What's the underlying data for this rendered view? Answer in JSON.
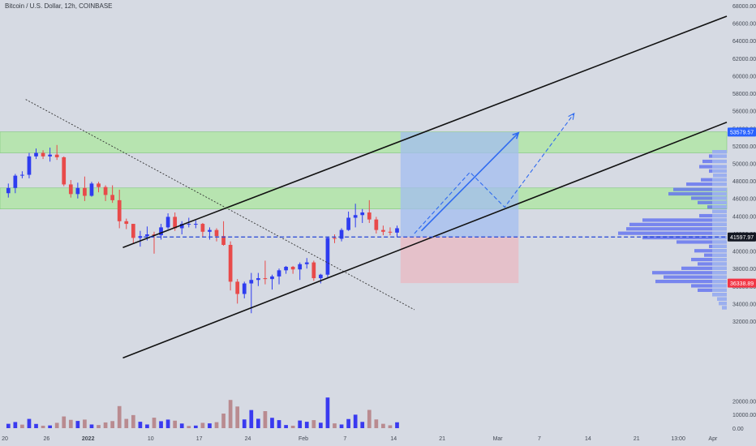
{
  "chart_data": {
    "type": "candlestick",
    "title": "Bitcoin / U.S. Dollar, 12h, COINBASE",
    "y_axis": {
      "range": [
        31000,
        69000
      ],
      "ticks": [
        "68000.00",
        "66000.00",
        "64000.00",
        "62000.00",
        "60000.00",
        "58000.00",
        "56000.00",
        "54000.00",
        "52000.00",
        "50000.00",
        "48000.00",
        "46000.00",
        "44000.00",
        "42000.00",
        "40000.00",
        "38000.00",
        "36000.00",
        "34000.00",
        "32000.00"
      ],
      "tick_values": [
        68000,
        66000,
        64000,
        62000,
        60000,
        58000,
        56000,
        54000,
        52000,
        50000,
        48000,
        46000,
        44000,
        42000,
        40000,
        38000,
        36000,
        34000,
        32000
      ]
    },
    "volume_axis": {
      "ticks": [
        "20000.00",
        "10000.00",
        "0.00"
      ],
      "tick_values": [
        20000,
        10000,
        0
      ],
      "max": 25000
    },
    "x_axis": {
      "start_date": "2021-12-20",
      "end_date": "2022-04-03",
      "labels": [
        {
          "text": "20",
          "date": "2021-12-20"
        },
        {
          "text": "26",
          "date": "2021-12-26"
        },
        {
          "text": "2022",
          "date": "2022-01-01"
        },
        {
          "text": "10",
          "date": "2022-01-10"
        },
        {
          "text": "17",
          "date": "2022-01-17"
        },
        {
          "text": "24",
          "date": "2022-01-24"
        },
        {
          "text": "Feb",
          "date": "2022-02-01"
        },
        {
          "text": "7",
          "date": "2022-02-07"
        },
        {
          "text": "14",
          "date": "2022-02-14"
        },
        {
          "text": "21",
          "date": "2022-02-21"
        },
        {
          "text": "Mar",
          "date": "2022-03-01"
        },
        {
          "text": "7",
          "date": "2022-03-07"
        },
        {
          "text": "14",
          "date": "2022-03-14"
        },
        {
          "text": "21",
          "date": "2022-03-21"
        },
        {
          "text": "13:00",
          "date": "2022-03-27"
        },
        {
          "text": "Apr",
          "date": "2022-04-01"
        }
      ]
    },
    "price_labels": [
      {
        "text": "53579.57",
        "value": 53579.57,
        "color": "#2962ff"
      },
      {
        "text": "41597.97",
        "value": 41597.97,
        "color": "#131722"
      },
      {
        "text": "36338.89",
        "value": 36338.89,
        "color": "#f23645"
      }
    ],
    "zones": [
      {
        "name": "upper-resistance-zone",
        "from": 51200,
        "to": 53600,
        "color": "#b7e4b0"
      },
      {
        "name": "middle-resistance-zone",
        "from": 44800,
        "to": 47200,
        "color": "#b7e4b0"
      }
    ],
    "position": {
      "start": "2022-02-15",
      "end": "2022-03-04",
      "entry": 41597.97,
      "target": 53579.57,
      "stop": 36338.89
    },
    "lines": [
      {
        "name": "channel-top-line",
        "from": [
          "2022-01-06",
          40400
        ],
        "to": [
          "2022-04-03",
          66800
        ]
      },
      {
        "name": "channel-bottom-line",
        "from": [
          "2022-01-06",
          27800
        ],
        "to": [
          "2022-04-03",
          54700
        ]
      },
      {
        "name": "downtrend-dotted-line",
        "from": [
          "2021-12-23",
          57300
        ],
        "to": [
          "2022-02-17",
          33300
        ]
      },
      {
        "name": "support-dashed-line",
        "from": [
          "2022-01-09",
          41600
        ],
        "to": [
          "2022-04-03",
          41600
        ]
      }
    ],
    "arrows": [
      {
        "name": "projection-arrow",
        "path": [
          [
            "2022-02-18",
            42300
          ],
          [
            "2022-03-04",
            53500
          ]
        ],
        "dashed": false
      },
      {
        "name": "alternate-path-arrow",
        "path": [
          [
            "2022-02-17",
            42000
          ],
          [
            "2022-02-25",
            49000
          ],
          [
            "2022-03-02",
            45000
          ],
          [
            "2022-03-12",
            55700
          ]
        ],
        "dashed": true
      }
    ],
    "ohlc": [
      {
        "date": "2021-12-20",
        "o": 46600,
        "h": 47700,
        "l": 46100,
        "c": 47200
      },
      {
        "date": "2021-12-21",
        "o": 47200,
        "h": 48800,
        "l": 46600,
        "c": 48600
      },
      {
        "date": "2021-12-22",
        "o": 48600,
        "h": 49100,
        "l": 48300,
        "c": 48700
      },
      {
        "date": "2021-12-23",
        "o": 48700,
        "h": 51200,
        "l": 48300,
        "c": 50800
      },
      {
        "date": "2021-12-24",
        "o": 50800,
        "h": 51700,
        "l": 50500,
        "c": 51200
      },
      {
        "date": "2021-12-25",
        "o": 51200,
        "h": 51500,
        "l": 50500,
        "c": 50800
      },
      {
        "date": "2021-12-26",
        "o": 50800,
        "h": 51800,
        "l": 50200,
        "c": 51000
      },
      {
        "date": "2021-12-27",
        "o": 51000,
        "h": 52100,
        "l": 50400,
        "c": 50700
      },
      {
        "date": "2021-12-28",
        "o": 50700,
        "h": 50800,
        "l": 47400,
        "c": 47600
      },
      {
        "date": "2021-12-29",
        "o": 47600,
        "h": 48100,
        "l": 46100,
        "c": 46500
      },
      {
        "date": "2021-12-30",
        "o": 46500,
        "h": 47800,
        "l": 46000,
        "c": 47200
      },
      {
        "date": "2021-12-31",
        "o": 47200,
        "h": 48500,
        "l": 45700,
        "c": 46300
      },
      {
        "date": "2022-01-01",
        "o": 46300,
        "h": 47900,
        "l": 46200,
        "c": 47700
      },
      {
        "date": "2022-01-02",
        "o": 47700,
        "h": 47900,
        "l": 46700,
        "c": 47300
      },
      {
        "date": "2022-01-03",
        "o": 47300,
        "h": 47500,
        "l": 45700,
        "c": 46400
      },
      {
        "date": "2022-01-04",
        "o": 46400,
        "h": 47500,
        "l": 45500,
        "c": 45800
      },
      {
        "date": "2022-01-05",
        "o": 45800,
        "h": 47000,
        "l": 42600,
        "c": 43400
      },
      {
        "date": "2022-01-06",
        "o": 43400,
        "h": 43700,
        "l": 42500,
        "c": 43100
      },
      {
        "date": "2022-01-07",
        "o": 43100,
        "h": 43100,
        "l": 40800,
        "c": 41500
      },
      {
        "date": "2022-01-08",
        "o": 41500,
        "h": 42300,
        "l": 40500,
        "c": 41700
      },
      {
        "date": "2022-01-09",
        "o": 41700,
        "h": 42800,
        "l": 41200,
        "c": 41900
      },
      {
        "date": "2022-01-10",
        "o": 41900,
        "h": 42200,
        "l": 39700,
        "c": 41800
      },
      {
        "date": "2022-01-11",
        "o": 41800,
        "h": 43100,
        "l": 41300,
        "c": 42700
      },
      {
        "date": "2022-01-12",
        "o": 42700,
        "h": 44300,
        "l": 42500,
        "c": 43900
      },
      {
        "date": "2022-01-13",
        "o": 43900,
        "h": 44400,
        "l": 42300,
        "c": 42600
      },
      {
        "date": "2022-01-14",
        "o": 42600,
        "h": 43400,
        "l": 41900,
        "c": 43100
      },
      {
        "date": "2022-01-15",
        "o": 43100,
        "h": 43800,
        "l": 42700,
        "c": 43100
      },
      {
        "date": "2022-01-16",
        "o": 43100,
        "h": 43500,
        "l": 42600,
        "c": 43100
      },
      {
        "date": "2022-01-17",
        "o": 43100,
        "h": 43200,
        "l": 41600,
        "c": 42200
      },
      {
        "date": "2022-01-18",
        "o": 42200,
        "h": 42700,
        "l": 41300,
        "c": 42400
      },
      {
        "date": "2022-01-19",
        "o": 42400,
        "h": 42600,
        "l": 41100,
        "c": 41700
      },
      {
        "date": "2022-01-20",
        "o": 41700,
        "h": 43400,
        "l": 40600,
        "c": 40700
      },
      {
        "date": "2022-01-21",
        "o": 40700,
        "h": 41100,
        "l": 35500,
        "c": 36500
      },
      {
        "date": "2022-01-22",
        "o": 36500,
        "h": 36800,
        "l": 34000,
        "c": 35100
      },
      {
        "date": "2022-01-23",
        "o": 35100,
        "h": 36500,
        "l": 34600,
        "c": 36300
      },
      {
        "date": "2022-01-24",
        "o": 36300,
        "h": 37500,
        "l": 32900,
        "c": 36700
      },
      {
        "date": "2022-01-25",
        "o": 36700,
        "h": 37500,
        "l": 36000,
        "c": 36900
      },
      {
        "date": "2022-01-26",
        "o": 36900,
        "h": 38900,
        "l": 36200,
        "c": 36800
      },
      {
        "date": "2022-01-27",
        "o": 36800,
        "h": 37300,
        "l": 35600,
        "c": 37100
      },
      {
        "date": "2022-01-28",
        "o": 37100,
        "h": 38000,
        "l": 36200,
        "c": 37800
      },
      {
        "date": "2022-01-29",
        "o": 37800,
        "h": 38300,
        "l": 37400,
        "c": 38200
      },
      {
        "date": "2022-01-30",
        "o": 38200,
        "h": 38300,
        "l": 37400,
        "c": 37900
      },
      {
        "date": "2022-01-31",
        "o": 37900,
        "h": 38700,
        "l": 36700,
        "c": 38500
      },
      {
        "date": "2022-02-01",
        "o": 38500,
        "h": 39200,
        "l": 38000,
        "c": 38700
      },
      {
        "date": "2022-02-02",
        "o": 38700,
        "h": 38900,
        "l": 36600,
        "c": 36900
      },
      {
        "date": "2022-02-03",
        "o": 36900,
        "h": 37400,
        "l": 36300,
        "c": 37300
      },
      {
        "date": "2022-02-04",
        "o": 37300,
        "h": 41600,
        "l": 37000,
        "c": 41500
      },
      {
        "date": "2022-02-05",
        "o": 41500,
        "h": 41900,
        "l": 40900,
        "c": 41400
      },
      {
        "date": "2022-02-06",
        "o": 41400,
        "h": 42600,
        "l": 41100,
        "c": 42400
      },
      {
        "date": "2022-02-07",
        "o": 42400,
        "h": 44500,
        "l": 42300,
        "c": 43800
      },
      {
        "date": "2022-02-08",
        "o": 43800,
        "h": 45400,
        "l": 42700,
        "c": 44100
      },
      {
        "date": "2022-02-09",
        "o": 44100,
        "h": 44800,
        "l": 43200,
        "c": 44400
      },
      {
        "date": "2022-02-10",
        "o": 44400,
        "h": 45800,
        "l": 43200,
        "c": 43600
      },
      {
        "date": "2022-02-11",
        "o": 43600,
        "h": 43900,
        "l": 42000,
        "c": 42400
      },
      {
        "date": "2022-02-12",
        "o": 42400,
        "h": 42900,
        "l": 41800,
        "c": 42200
      },
      {
        "date": "2022-02-13",
        "o": 42200,
        "h": 42700,
        "l": 41800,
        "c": 42100
      },
      {
        "date": "2022-02-14",
        "o": 42100,
        "h": 42900,
        "l": 41600,
        "c": 42600
      }
    ],
    "volume": [
      {
        "date": "2021-12-20",
        "v": 3200,
        "up": true
      },
      {
        "date": "2021-12-21",
        "v": 4500,
        "up": true
      },
      {
        "date": "2021-12-22",
        "v": 2600,
        "up": false
      },
      {
        "date": "2021-12-23",
        "v": 6800,
        "up": true
      },
      {
        "date": "2021-12-24",
        "v": 3100,
        "up": true
      },
      {
        "date": "2021-12-25",
        "v": 1800,
        "up": false
      },
      {
        "date": "2021-12-26",
        "v": 2000,
        "up": true
      },
      {
        "date": "2021-12-27",
        "v": 3900,
        "up": false
      },
      {
        "date": "2021-12-28",
        "v": 8600,
        "up": false
      },
      {
        "date": "2021-12-29",
        "v": 6100,
        "up": false
      },
      {
        "date": "2021-12-30",
        "v": 5300,
        "up": true
      },
      {
        "date": "2021-12-31",
        "v": 6300,
        "up": false
      },
      {
        "date": "2022-01-01",
        "v": 2700,
        "up": true
      },
      {
        "date": "2022-01-02",
        "v": 2300,
        "up": false
      },
      {
        "date": "2022-01-03",
        "v": 4200,
        "up": false
      },
      {
        "date": "2022-01-04",
        "v": 5200,
        "up": false
      },
      {
        "date": "2022-01-05",
        "v": 16200,
        "up": false
      },
      {
        "date": "2022-01-06",
        "v": 6800,
        "up": false
      },
      {
        "date": "2022-01-07",
        "v": 9600,
        "up": false
      },
      {
        "date": "2022-01-08",
        "v": 4700,
        "up": true
      },
      {
        "date": "2022-01-09",
        "v": 2700,
        "up": true
      },
      {
        "date": "2022-01-10",
        "v": 7700,
        "up": false
      },
      {
        "date": "2022-01-11",
        "v": 5100,
        "up": true
      },
      {
        "date": "2022-01-12",
        "v": 6300,
        "up": true
      },
      {
        "date": "2022-01-13",
        "v": 5500,
        "up": false
      },
      {
        "date": "2022-01-14",
        "v": 3400,
        "up": true
      },
      {
        "date": "2022-01-15",
        "v": 1600,
        "up": false
      },
      {
        "date": "2022-01-16",
        "v": 1900,
        "up": true
      },
      {
        "date": "2022-01-17",
        "v": 3900,
        "up": false
      },
      {
        "date": "2022-01-18",
        "v": 3500,
        "up": true
      },
      {
        "date": "2022-01-19",
        "v": 4400,
        "up": false
      },
      {
        "date": "2022-01-20",
        "v": 10700,
        "up": false
      },
      {
        "date": "2022-01-21",
        "v": 20700,
        "up": false
      },
      {
        "date": "2022-01-22",
        "v": 15900,
        "up": false
      },
      {
        "date": "2022-01-23",
        "v": 6400,
        "up": true
      },
      {
        "date": "2022-01-24",
        "v": 13300,
        "up": true
      },
      {
        "date": "2022-01-25",
        "v": 6900,
        "up": true
      },
      {
        "date": "2022-01-26",
        "v": 12500,
        "up": false
      },
      {
        "date": "2022-01-27",
        "v": 7600,
        "up": true
      },
      {
        "date": "2022-01-28",
        "v": 5900,
        "up": true
      },
      {
        "date": "2022-01-29",
        "v": 2300,
        "up": true
      },
      {
        "date": "2022-01-30",
        "v": 1800,
        "up": false
      },
      {
        "date": "2022-01-31",
        "v": 5600,
        "up": true
      },
      {
        "date": "2022-02-01",
        "v": 4700,
        "up": true
      },
      {
        "date": "2022-02-02",
        "v": 5900,
        "up": false
      },
      {
        "date": "2022-02-03",
        "v": 4000,
        "up": true
      },
      {
        "date": "2022-02-04",
        "v": 22500,
        "up": true
      },
      {
        "date": "2022-02-05",
        "v": 3500,
        "up": false
      },
      {
        "date": "2022-02-06",
        "v": 2700,
        "up": true
      },
      {
        "date": "2022-02-07",
        "v": 6700,
        "up": true
      },
      {
        "date": "2022-02-08",
        "v": 9900,
        "up": true
      },
      {
        "date": "2022-02-09",
        "v": 4600,
        "up": true
      },
      {
        "date": "2022-02-10",
        "v": 13400,
        "up": false
      },
      {
        "date": "2022-02-11",
        "v": 6400,
        "up": false
      },
      {
        "date": "2022-02-12",
        "v": 3200,
        "up": false
      },
      {
        "date": "2022-02-13",
        "v": 2100,
        "up": false
      },
      {
        "date": "2022-02-14",
        "v": 4300,
        "up": true
      }
    ],
    "volume_profile": [
      {
        "price": 51300,
        "volume": 18
      },
      {
        "price": 50800,
        "volume": 22
      },
      {
        "price": 50200,
        "volume": 30
      },
      {
        "price": 49600,
        "volume": 34
      },
      {
        "price": 49100,
        "volume": 22
      },
      {
        "price": 48600,
        "volume": 17
      },
      {
        "price": 48100,
        "volume": 32
      },
      {
        "price": 47600,
        "volume": 50
      },
      {
        "price": 47000,
        "volume": 66
      },
      {
        "price": 46500,
        "volume": 72
      },
      {
        "price": 46000,
        "volume": 44
      },
      {
        "price": 45500,
        "volume": 36
      },
      {
        "price": 45000,
        "volume": 24
      },
      {
        "price": 44500,
        "volume": 18
      },
      {
        "price": 44000,
        "volume": 34
      },
      {
        "price": 43500,
        "volume": 104
      },
      {
        "price": 43000,
        "volume": 120
      },
      {
        "price": 42500,
        "volume": 124
      },
      {
        "price": 42000,
        "volume": 134
      },
      {
        "price": 41500,
        "volume": 104
      },
      {
        "price": 41000,
        "volume": 62
      },
      {
        "price": 40500,
        "volume": 22
      },
      {
        "price": 40000,
        "volume": 40
      },
      {
        "price": 39500,
        "volume": 28
      },
      {
        "price": 39000,
        "volume": 44
      },
      {
        "price": 38500,
        "volume": 36
      },
      {
        "price": 38000,
        "volume": 56
      },
      {
        "price": 37500,
        "volume": 92
      },
      {
        "price": 37000,
        "volume": 78
      },
      {
        "price": 36500,
        "volume": 88
      },
      {
        "price": 36000,
        "volume": 44
      },
      {
        "price": 35500,
        "volume": 36
      },
      {
        "price": 35000,
        "volume": 18
      },
      {
        "price": 34500,
        "volume": 12
      },
      {
        "price": 34000,
        "volume": 10
      },
      {
        "price": 33500,
        "volume": 6
      }
    ],
    "colors": {
      "up": "#2e3cf0",
      "down": "#e84a4a",
      "volume_up": "#3a3af0",
      "volume_down": "#b98b90",
      "profile": "#5f6ff0",
      "profile_light": "#9fb4ee",
      "target_zone": "#a3bdf0",
      "stop_zone": "#e8bcc6"
    }
  }
}
